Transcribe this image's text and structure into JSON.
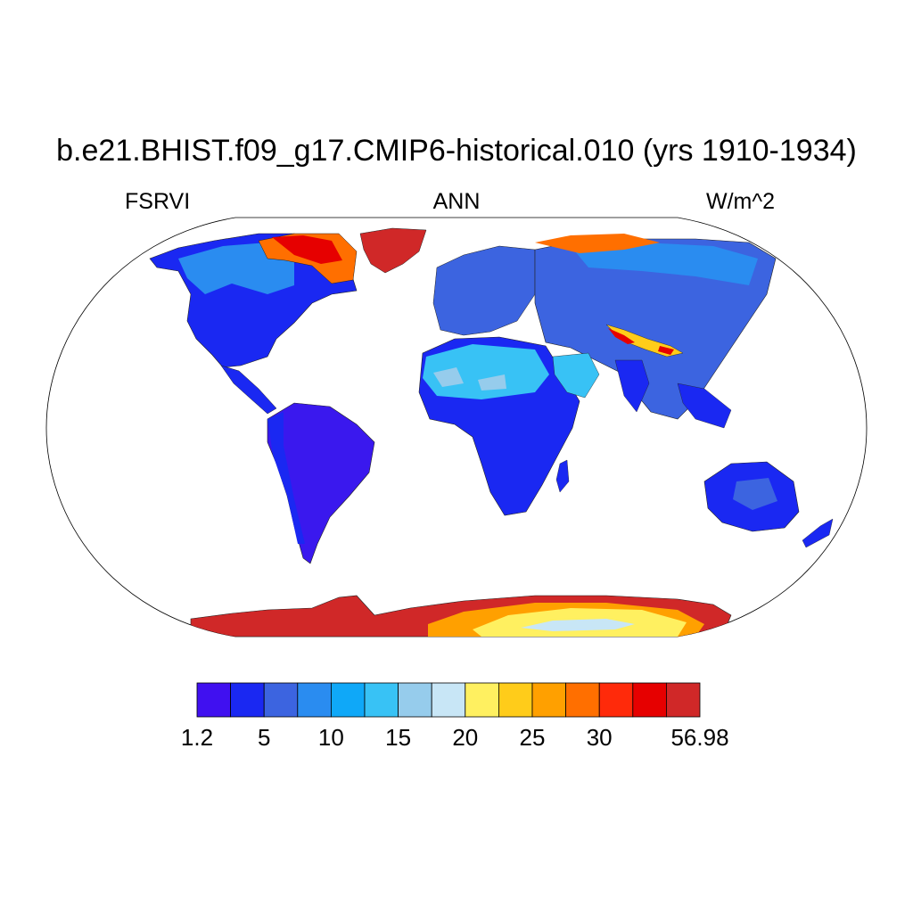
{
  "title": "b.e21.BHIST.f09_g17.CMIP6-historical.010 (yrs 1910-1934)",
  "variable": "FSRVI",
  "season": "ANN",
  "units": "W/m^2",
  "colorbar": {
    "colors": [
      "#4010f0",
      "#1a28f2",
      "#3c64e0",
      "#2a8cf0",
      "#0fa8f8",
      "#38c2f5",
      "#96ccec",
      "#c8e6f6",
      "#fff060",
      "#ffcc1a",
      "#ffa000",
      "#ff6f00",
      "#ff2a0a",
      "#e60000",
      "#d02828"
    ],
    "tick_labels": [
      "1.2",
      "5",
      "10",
      "15",
      "20",
      "25",
      "30",
      "56.98"
    ],
    "tick_boundary_index": [
      0,
      2,
      4,
      6,
      8,
      10,
      12,
      15
    ]
  },
  "map": {
    "projection": "Robinson",
    "ocean_color": "#ffffff",
    "coastline_color": "#000000"
  }
}
